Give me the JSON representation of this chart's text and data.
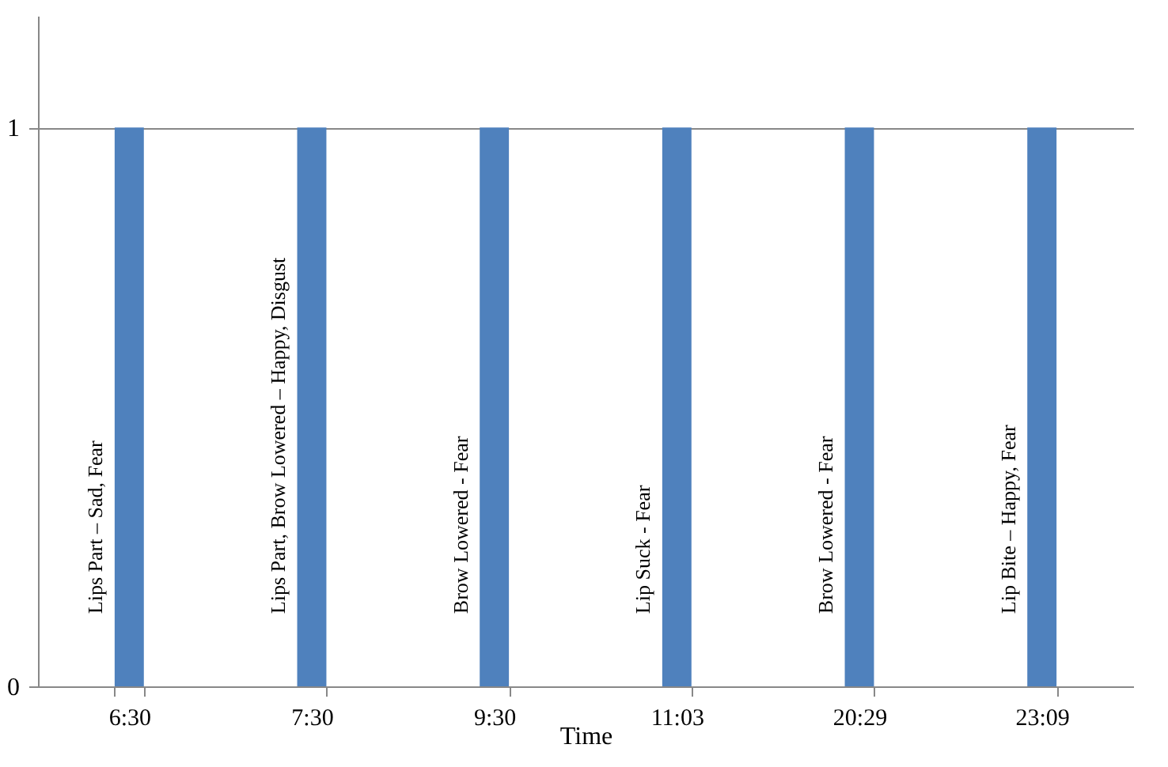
{
  "chart_data": {
    "type": "bar",
    "xlabel": "Time",
    "categories": [
      "6:30",
      "7:30",
      "9:30",
      "11:03",
      "20:29",
      "23:09"
    ],
    "values": [
      1,
      1,
      1,
      1,
      1,
      1
    ],
    "color": "#4f81bd",
    "ylim": [
      0,
      1.2
    ],
    "yticks": [
      0,
      1
    ],
    "grid": "y",
    "annotations": [
      "Lips Part – Sad, Fear",
      "Lips Part, Brow Lowered – Happy, Disgust",
      "Brow Lowered - Fear",
      "Lip Suck - Fear",
      "Brow Lowered - Fear",
      "Lip Bite – Happy, Fear"
    ]
  }
}
